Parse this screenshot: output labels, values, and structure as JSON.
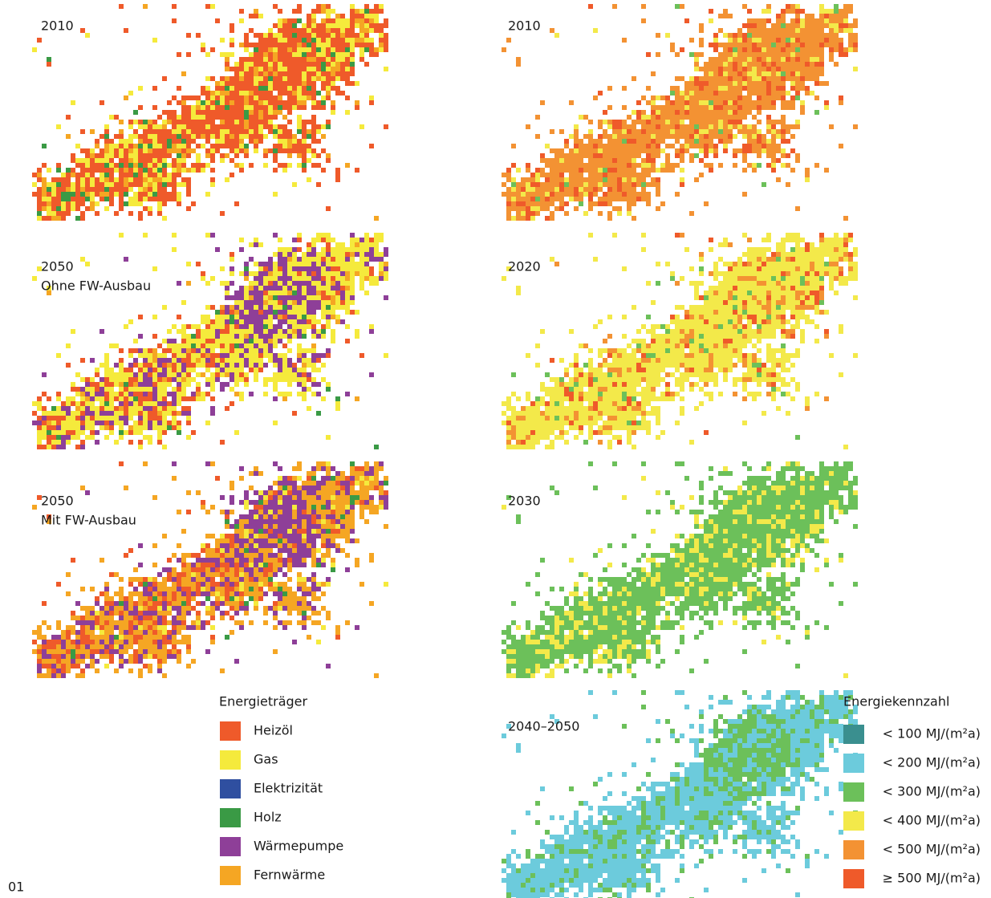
{
  "page_number": "01",
  "left_panels": [
    {
      "label": [
        "2010"
      ]
    },
    {
      "label": [
        "2050",
        "Ohne FW-Ausbau"
      ]
    },
    {
      "label": [
        "2050",
        "Mit FW-Ausbau"
      ]
    }
  ],
  "right_panels": [
    {
      "label": [
        "2010"
      ]
    },
    {
      "label": [
        "2020"
      ]
    },
    {
      "label": [
        "2030"
      ]
    },
    {
      "label": [
        "2040–2050"
      ]
    }
  ],
  "legend_left": {
    "title": "Energieträger",
    "items": [
      {
        "label": "Heizöl",
        "color": "#ef5a2a"
      },
      {
        "label": "Gas",
        "color": "#f5ea3c"
      },
      {
        "label": "Elektrizität",
        "color": "#2f4fa0"
      },
      {
        "label": "Holz",
        "color": "#3a9a45"
      },
      {
        "label": "Wärmepumpe",
        "color": "#8e3f98"
      },
      {
        "label": "Fernwärme",
        "color": "#f5a623"
      }
    ]
  },
  "legend_right": {
    "title": "Energiekennzahl",
    "items": [
      {
        "label": "< 100 MJ/(m²a)",
        "color": "#3a8f8f"
      },
      {
        "label": "< 200 MJ/(m²a)",
        "color": "#6ccbdc"
      },
      {
        "label": "< 300 MJ/(m²a)",
        "color": "#6cc05a"
      },
      {
        "label": "< 400 MJ/(m²a)",
        "color": "#f3e94a"
      },
      {
        "label": "< 500 MJ/(m²a)",
        "color": "#f39233"
      },
      {
        "label": "≥ 500 MJ/(m²a)",
        "color": "#ef5a2a"
      }
    ]
  }
}
